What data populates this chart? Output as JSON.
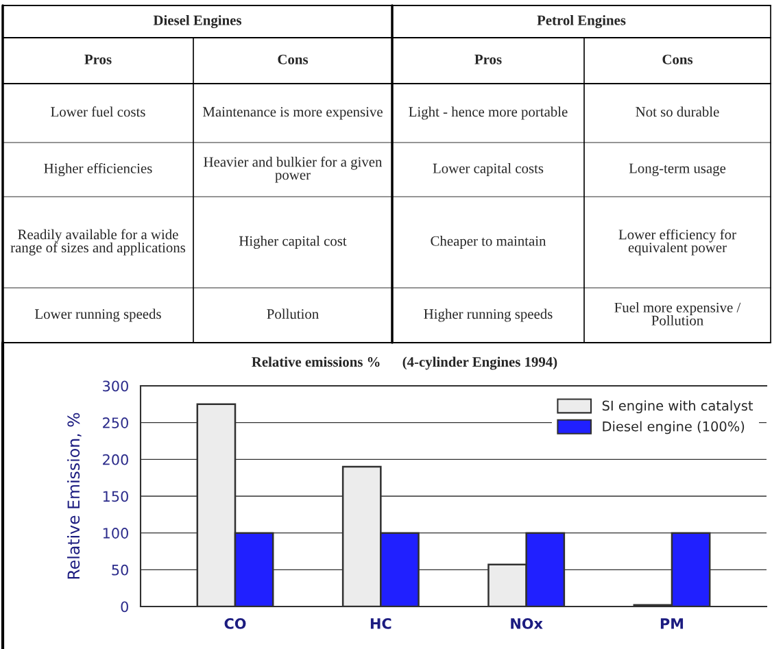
{
  "chart_data": [
    {
      "type": "other",
      "annotations": [
        "Diesel Engines",
        "Petrol Engines",
        "Pros",
        "Cons",
        "Pros",
        "Cons",
        "Lower fuel costs",
        "Maintenance is more expensive",
        "Light - hence more portable",
        "Not so durable",
        "Higher efficiencies",
        "Heavier and bulkier for a given power",
        "Lower capital costs",
        "Long-term usage",
        "Readily available for a wide range of sizes and applications",
        "Higher capital cost",
        "Cheaper to maintain",
        "Lower efficiency for equivalent power",
        "Lower running speeds",
        "Pollution",
        "Higher running speeds",
        "Fuel more expensive / Pollution"
      ]
    },
    {
      "type": "bar",
      "title": "Relative emissions %      (4-cylinder Engines 1994)",
      "ylabel": "Relative Emission, %",
      "categories": [
        "CO",
        "HC",
        "NOx",
        "PM"
      ],
      "series": [
        {
          "name": "SI engine with catalyst",
          "color": "#ececec",
          "values": [
            275,
            190,
            57,
            2
          ]
        },
        {
          "name": "Diesel engine (100%)",
          "color": "#2020ff",
          "values": [
            100,
            100,
            100,
            100
          ]
        }
      ],
      "ylim": [
        0,
        300
      ],
      "yticks": [
        0,
        50,
        100,
        150,
        200,
        250,
        300
      ],
      "grid": "y",
      "legend": "top right"
    }
  ]
}
